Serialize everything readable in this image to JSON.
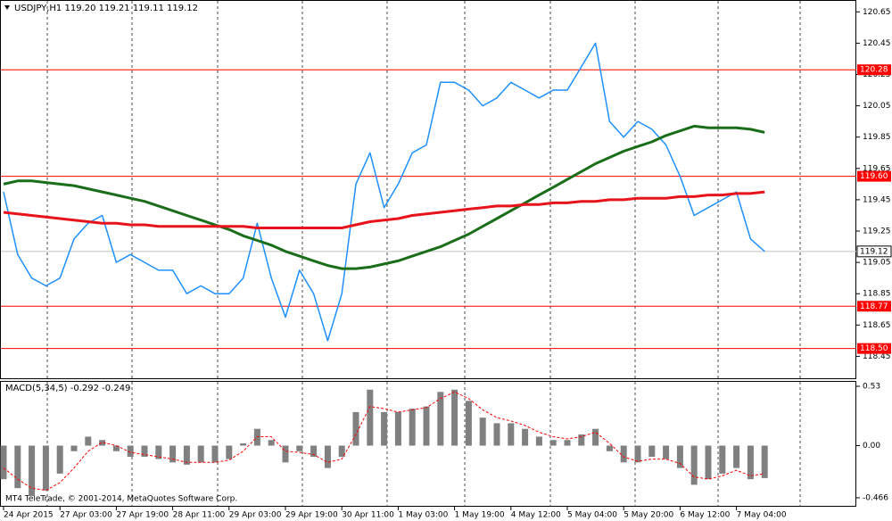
{
  "chart_data": [
    {
      "type": "line",
      "title": "USDJPY,H1  119.20 119.21 119.11 119.12",
      "categories": [
        "24 Apr 2015",
        null,
        null,
        null,
        "27 Apr 03:00",
        null,
        null,
        null,
        "27 Apr 19:00",
        null,
        null,
        null,
        "28 Apr 11:00",
        null,
        null,
        null,
        "29 Apr 03:00",
        null,
        null,
        null,
        "29 Apr 19:00",
        null,
        null,
        null,
        "30 Apr 11:00",
        null,
        null,
        null,
        "1 May 03:00",
        null,
        null,
        null,
        "1 May 19:00",
        null,
        null,
        null,
        "4 May 12:00",
        null,
        null,
        null,
        "5 May 04:00",
        null,
        null,
        null,
        "5 May 20:00",
        null,
        null,
        null,
        "6 May 12:00",
        null,
        null,
        null,
        "7 May 04:00",
        null,
        null
      ],
      "series": [
        {
          "color": "#1e90ff",
          "width": 1.5,
          "values": [
            119.5,
            119.1,
            118.95,
            118.9,
            118.95,
            119.2,
            119.3,
            119.35,
            119.05,
            119.1,
            119.05,
            119.0,
            119.0,
            118.85,
            118.9,
            118.85,
            118.85,
            118.95,
            119.3,
            118.95,
            118.7,
            119.0,
            118.85,
            118.55,
            118.85,
            119.55,
            119.75,
            119.4,
            119.55,
            119.75,
            119.8,
            120.2,
            120.2,
            120.15,
            120.05,
            120.1,
            120.2,
            120.15,
            120.1,
            120.15,
            120.15,
            120.3,
            120.45,
            119.95,
            119.85,
            119.95,
            119.9,
            119.8,
            119.6,
            119.35,
            119.4,
            119.45,
            119.5,
            119.2,
            119.12
          ]
        },
        {
          "color": "#1a6e1a",
          "width": 3,
          "values": [
            119.55,
            119.57,
            119.57,
            119.56,
            119.55,
            119.54,
            119.52,
            119.5,
            119.48,
            119.46,
            119.44,
            119.41,
            119.38,
            119.35,
            119.32,
            119.29,
            119.26,
            119.22,
            119.19,
            119.16,
            119.12,
            119.09,
            119.06,
            119.03,
            119.01,
            119.01,
            119.02,
            119.04,
            119.06,
            119.09,
            119.12,
            119.15,
            119.19,
            119.23,
            119.28,
            119.33,
            119.38,
            119.43,
            119.48,
            119.53,
            119.58,
            119.63,
            119.68,
            119.72,
            119.76,
            119.79,
            119.82,
            119.86,
            119.89,
            119.92,
            119.91,
            119.91,
            119.91,
            119.9,
            119.88
          ]
        },
        {
          "color": "#e8141c",
          "width": 3,
          "values": [
            119.37,
            119.36,
            119.35,
            119.34,
            119.33,
            119.32,
            119.31,
            119.3,
            119.3,
            119.29,
            119.29,
            119.28,
            119.28,
            119.28,
            119.28,
            119.28,
            119.28,
            119.28,
            119.27,
            119.27,
            119.27,
            119.27,
            119.27,
            119.27,
            119.27,
            119.29,
            119.31,
            119.32,
            119.33,
            119.35,
            119.36,
            119.37,
            119.38,
            119.39,
            119.4,
            119.41,
            119.41,
            119.42,
            119.42,
            119.43,
            119.43,
            119.44,
            119.44,
            119.45,
            119.45,
            119.46,
            119.46,
            119.46,
            119.47,
            119.47,
            119.48,
            119.48,
            119.49,
            119.49,
            119.5
          ]
        }
      ],
      "ylim": [
        118.31,
        120.72
      ],
      "yticks": [
        120.65,
        120.45,
        120.25,
        120.05,
        119.85,
        119.65,
        119.45,
        119.25,
        119.05,
        118.85,
        118.65,
        118.45
      ],
      "levels": [
        120.28,
        {
          "value": 119.6,
          "label": "119.60"
        },
        {
          "value": 118.77,
          "label": "118.77"
        },
        {
          "value": 118.5,
          "label": "118.50"
        }
      ],
      "level_color": "#ff0000",
      "current_price": 119.12
    },
    {
      "type": "macd",
      "title": "MACD(5,34,5) -0.292 -0.249",
      "series": [
        {
          "type": "bar",
          "color": "#808080",
          "values": [
            -0.3,
            -0.38,
            -0.45,
            -0.4,
            -0.25,
            -0.05,
            0.08,
            0.05,
            -0.05,
            -0.1,
            -0.1,
            -0.12,
            -0.15,
            -0.17,
            -0.15,
            -0.15,
            -0.12,
            0.02,
            0.15,
            0.05,
            -0.15,
            -0.05,
            -0.1,
            -0.2,
            -0.1,
            0.3,
            0.5,
            0.3,
            0.3,
            0.33,
            0.35,
            0.48,
            0.5,
            0.4,
            0.25,
            0.2,
            0.2,
            0.15,
            0.08,
            0.05,
            0.05,
            0.1,
            0.15,
            -0.05,
            -0.15,
            -0.15,
            -0.1,
            -0.12,
            -0.2,
            -0.35,
            -0.3,
            -0.25,
            -0.2,
            -0.3,
            -0.29
          ]
        },
        {
          "type": "line",
          "color": "#ff0000",
          "values": [
            -0.2,
            -0.3,
            -0.38,
            -0.4,
            -0.33,
            -0.2,
            -0.05,
            0.03,
            0.0,
            -0.06,
            -0.08,
            -0.1,
            -0.12,
            -0.15,
            -0.15,
            -0.15,
            -0.13,
            -0.05,
            0.08,
            0.08,
            -0.05,
            -0.06,
            -0.08,
            -0.15,
            -0.12,
            0.1,
            0.35,
            0.33,
            0.3,
            0.32,
            0.34,
            0.42,
            0.48,
            0.42,
            0.32,
            0.25,
            0.22,
            0.18,
            0.12,
            0.08,
            0.06,
            0.08,
            0.12,
            0.02,
            -0.1,
            -0.14,
            -0.12,
            -0.12,
            -0.16,
            -0.28,
            -0.3,
            -0.27,
            -0.22,
            -0.27,
            -0.25
          ]
        }
      ],
      "ylim": [
        -0.538,
        0.57
      ],
      "yticks": [
        0.53,
        {
          "value": 0,
          "label": "0.00"
        },
        -0.466
      ],
      "watermark": "MT4 TeleTrade, © 2001-2014, MetaQuotes Software Corp."
    }
  ]
}
